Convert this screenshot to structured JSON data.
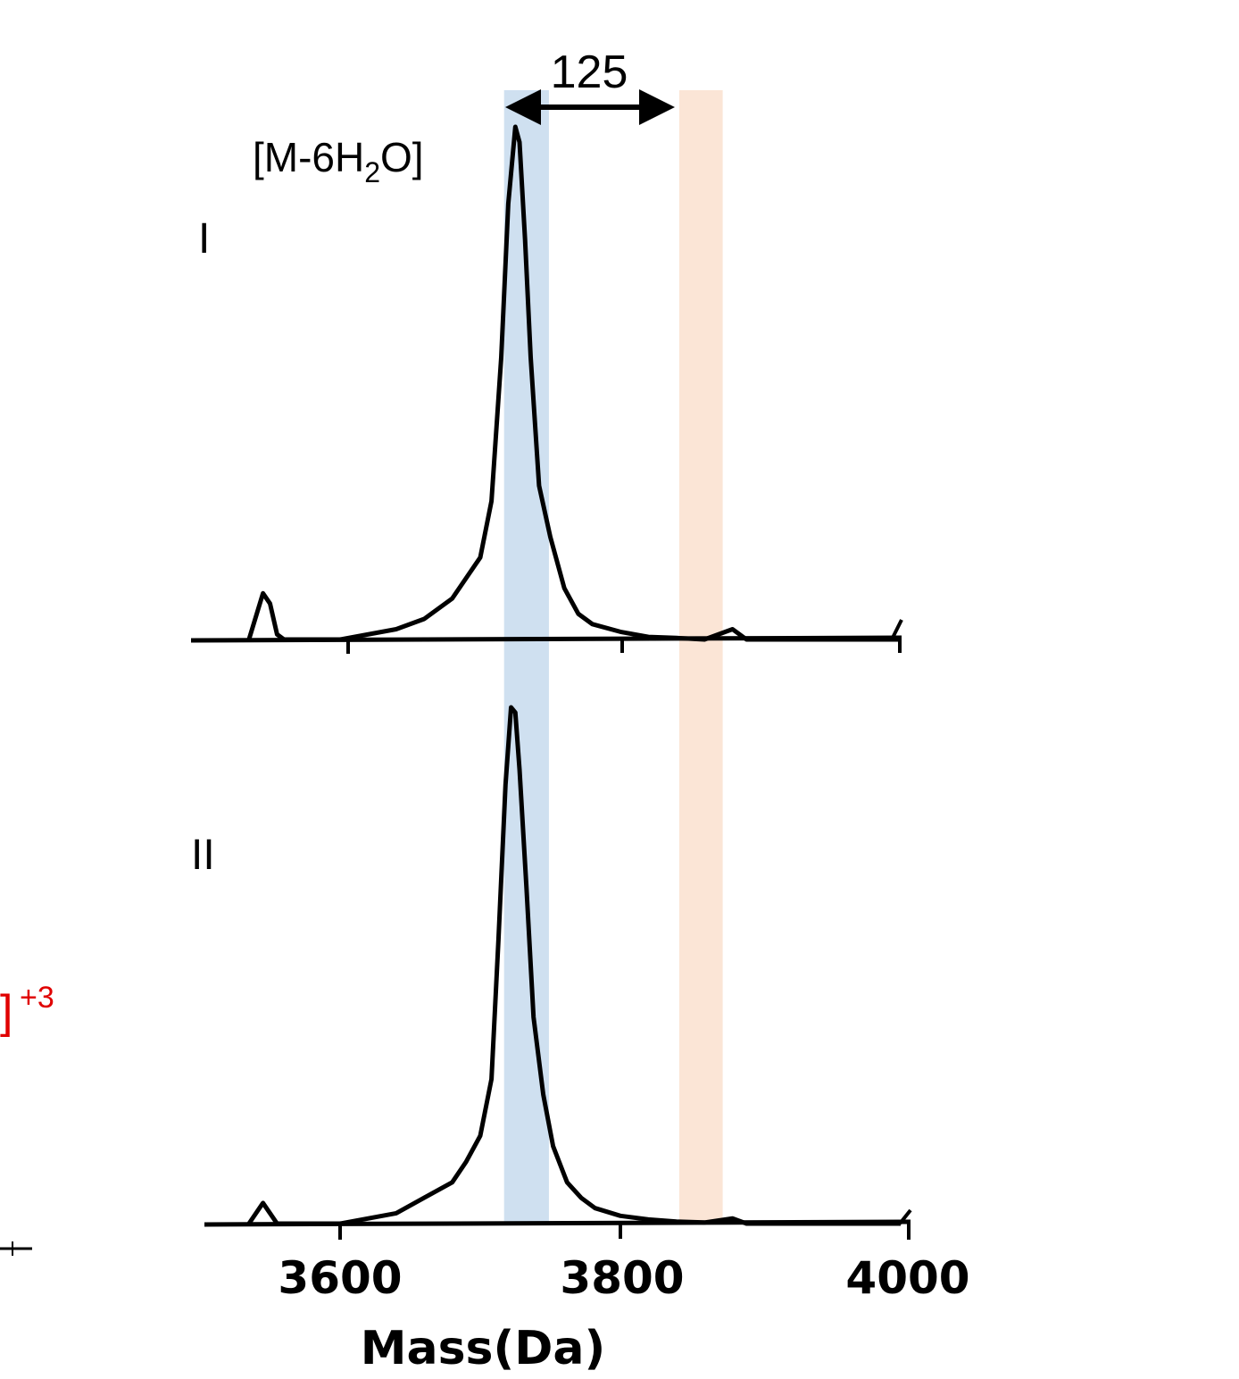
{
  "chart_data": {
    "type": "line",
    "xlabel": "Mass(Da)",
    "x_ticks": [
      "3600",
      "3800",
      "4000"
    ],
    "xlim": [
      3500,
      4010
    ],
    "panels": [
      {
        "label": "I",
        "peak_annotation": "[M-6H",
        "peak_annotation_sub": "2",
        "peak_annotation_end": "O]",
        "series": {
          "x": [
            3535,
            3545,
            3550,
            3555,
            3560,
            3575,
            3600,
            3640,
            3660,
            3680,
            3690,
            3700,
            3708,
            3715,
            3720,
            3725,
            3728,
            3732,
            3736,
            3742,
            3750,
            3760,
            3770,
            3780,
            3800,
            3820,
            3840,
            3860,
            3880,
            3890,
            3910,
            3950,
            4000
          ],
          "y": [
            0.0,
            0.09,
            0.07,
            0.01,
            0.0,
            0.0,
            0.0,
            0.02,
            0.04,
            0.08,
            0.12,
            0.16,
            0.27,
            0.55,
            0.85,
            1.0,
            0.97,
            0.78,
            0.55,
            0.3,
            0.2,
            0.1,
            0.05,
            0.03,
            0.015,
            0.005,
            0.003,
            0.0,
            0.02,
            0.0,
            0.0,
            0.0,
            0.0
          ]
        }
      },
      {
        "label": "II",
        "series": {
          "x": [
            3535,
            3545,
            3550,
            3555,
            3560,
            3575,
            3600,
            3640,
            3660,
            3680,
            3690,
            3700,
            3708,
            3713,
            3718,
            3722,
            3725,
            3728,
            3733,
            3738,
            3745,
            3752,
            3762,
            3772,
            3782,
            3800,
            3820,
            3840,
            3860,
            3880,
            3890,
            3910,
            3950,
            4000
          ],
          "y": [
            0.0,
            0.04,
            0.02,
            0.0,
            0.0,
            0.0,
            0.0,
            0.02,
            0.05,
            0.08,
            0.12,
            0.17,
            0.28,
            0.55,
            0.85,
            1.0,
            0.99,
            0.88,
            0.65,
            0.4,
            0.25,
            0.15,
            0.08,
            0.05,
            0.03,
            0.015,
            0.008,
            0.004,
            0.002,
            0.01,
            0.0,
            0.0,
            0.0,
            0.0
          ]
        }
      }
    ],
    "highlight_bands": [
      {
        "x": [
          3717,
          3749
        ],
        "color": "#cfe0f0"
      },
      {
        "x": [
          3842,
          3873
        ],
        "color": "#fbe5d6"
      }
    ],
    "annotation": {
      "text": "125",
      "from": 3717,
      "to": 3842
    }
  },
  "edge_fragment": {
    "text": "]",
    "superscript": "+3",
    "color": "#e00000"
  }
}
